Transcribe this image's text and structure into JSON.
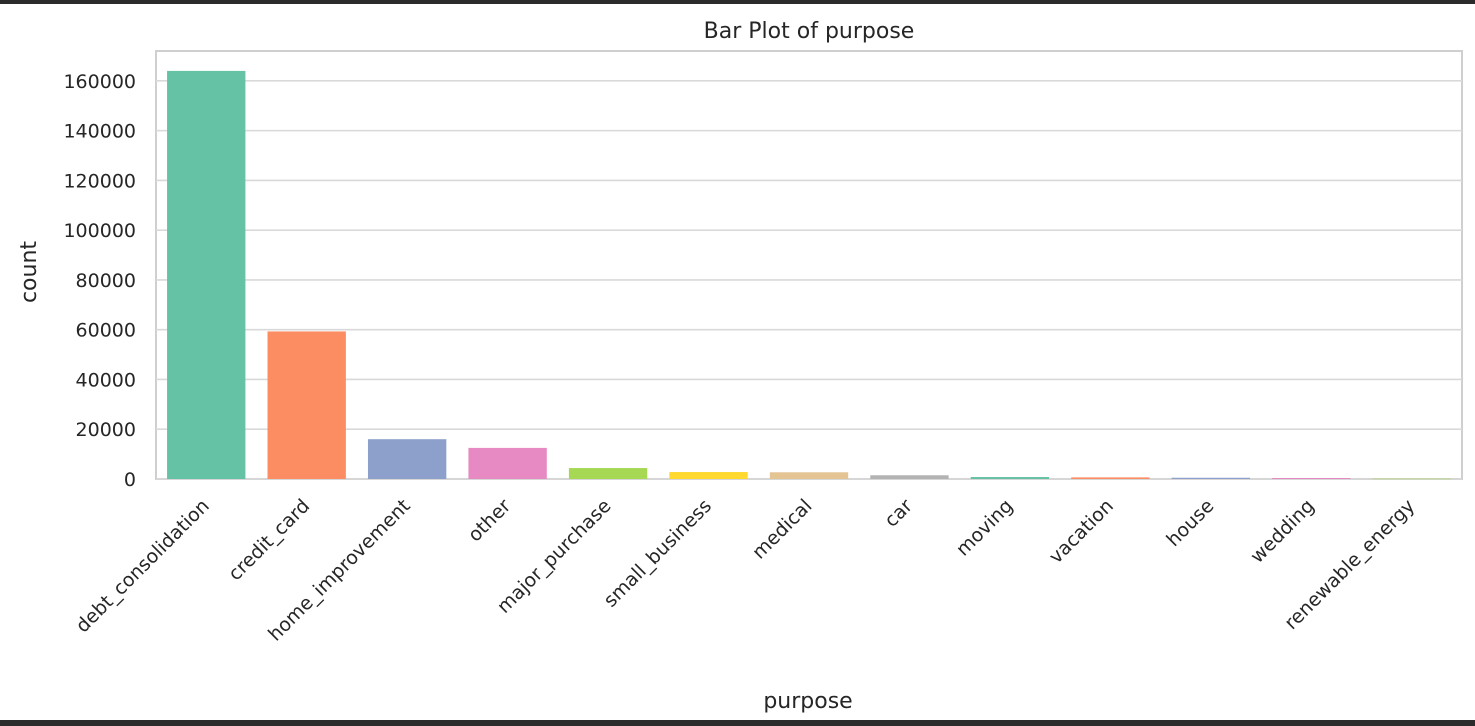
{
  "chart_data": {
    "type": "bar",
    "title": "Bar Plot of purpose",
    "xlabel": "purpose",
    "ylabel": "count",
    "categories": [
      "debt_consolidation",
      "credit_card",
      "home_improvement",
      "other",
      "major_purchase",
      "small_business",
      "medical",
      "car",
      "moving",
      "vacation",
      "house",
      "wedding",
      "renewable_energy"
    ],
    "values": [
      164000,
      59300,
      16000,
      12500,
      4400,
      2800,
      2700,
      1500,
      800,
      650,
      500,
      400,
      130
    ],
    "colors": [
      "#66c2a5",
      "#fc8d62",
      "#8da0cb",
      "#e78ac3",
      "#a6d854",
      "#ffd92f",
      "#e5c494",
      "#b3b3b3",
      "#66c2a5",
      "#fc8d62",
      "#8da0cb",
      "#e78ac3",
      "#a6d854"
    ],
    "ylim": [
      0,
      172000
    ],
    "yticks": [
      0,
      20000,
      40000,
      60000,
      80000,
      100000,
      120000,
      140000,
      160000
    ],
    "grid": true,
    "legend": "none"
  }
}
